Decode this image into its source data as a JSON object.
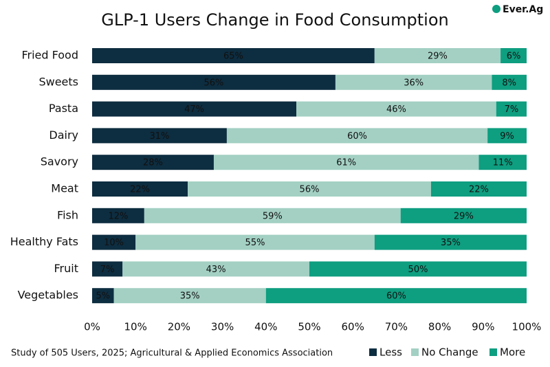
{
  "chart_data": {
    "type": "stacked_barh",
    "title": "GLP-1 Users Change in Food Consumption",
    "logo": "Ever.Ag",
    "source": "Study of 505 Users, 2025; Agricultural & Applied Economics Association",
    "categories": [
      "Fried Food",
      "Sweets",
      "Pasta",
      "Dairy",
      "Savory",
      "Meat",
      "Fish",
      "Healthy Fats",
      "Fruit",
      "Vegetables"
    ],
    "series": [
      {
        "name": "Less",
        "color": "#0d2d40",
        "values": [
          65,
          56,
          47,
          31,
          28,
          22,
          12,
          10,
          7,
          5
        ],
        "value_labels": [
          "65%",
          "56%",
          "47%",
          "31%",
          "28%",
          "22%",
          "12%",
          "10%",
          "7%",
          "5%"
        ]
      },
      {
        "name": "No Change",
        "color": "#a3d0c3",
        "values": [
          29,
          36,
          46,
          60,
          61,
          56,
          59,
          55,
          43,
          35
        ],
        "value_labels": [
          "29%",
          "36%",
          "46%",
          "60%",
          "61%",
          "56%",
          "59%",
          "55%",
          "43%",
          "35%"
        ]
      },
      {
        "name": "More",
        "color": "#0e9e80",
        "values": [
          6,
          8,
          7,
          9,
          11,
          22,
          29,
          35,
          50,
          60
        ],
        "value_labels": [
          "6%",
          "8%",
          "7%",
          "9%",
          "11%",
          "22%",
          "29%",
          "35%",
          "50%",
          "60%"
        ]
      }
    ],
    "xlim": [
      0,
      100
    ],
    "xticks": [
      {
        "value": 0,
        "label": "0%"
      },
      {
        "value": 10,
        "label": "10%"
      },
      {
        "value": 20,
        "label": "20%"
      },
      {
        "value": 30,
        "label": "30%"
      },
      {
        "value": 40,
        "label": "40%"
      },
      {
        "value": 50,
        "label": "50%"
      },
      {
        "value": 60,
        "label": "60%"
      },
      {
        "value": 70,
        "label": "70%"
      },
      {
        "value": 80,
        "label": "80%"
      },
      {
        "value": 90,
        "label": "90%"
      },
      {
        "value": 100,
        "label": "100%"
      }
    ],
    "grid": false,
    "legend": "bottom-right"
  }
}
